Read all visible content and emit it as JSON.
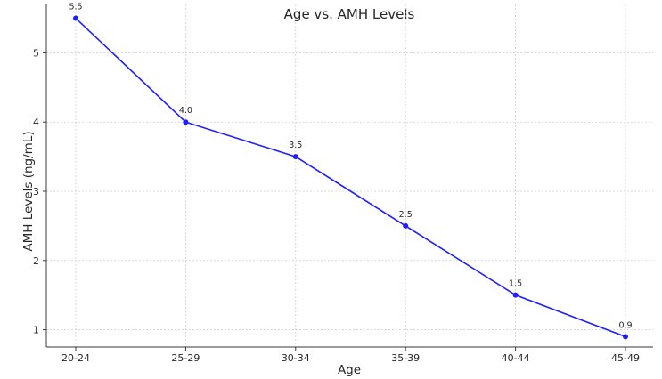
{
  "chart_data": {
    "type": "line",
    "title": "Age vs. AMH Levels",
    "xlabel": "Age",
    "ylabel": "AMH Levels (ng/mL)",
    "categories": [
      "20-24",
      "25-29",
      "30-34",
      "35-39",
      "40-44",
      "45-49"
    ],
    "series": [
      {
        "values": [
          5.5,
          4.0,
          3.5,
          2.5,
          1.5,
          0.9
        ],
        "data_labels": [
          "5.5",
          "4.0",
          "3.5",
          "2.5",
          "1.5",
          "0.9"
        ],
        "color": "#1f1fff",
        "marker": "circle"
      }
    ],
    "ylim": [
      0.75,
      5.7
    ],
    "yticks": [
      1,
      2,
      3,
      4,
      5
    ],
    "ytick_labels": [
      "1",
      "2",
      "3",
      "4",
      "5"
    ],
    "grid": true,
    "legend": false
  }
}
